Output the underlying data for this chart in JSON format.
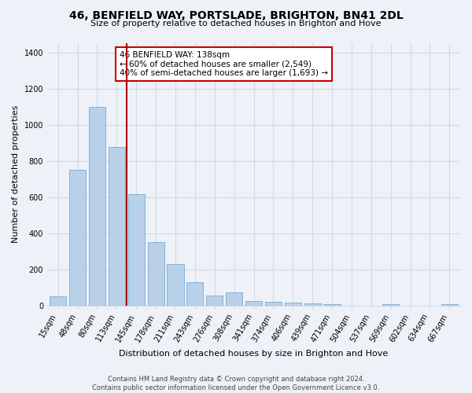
{
  "title": "46, BENFIELD WAY, PORTSLADE, BRIGHTON, BN41 2DL",
  "subtitle": "Size of property relative to detached houses in Brighton and Hove",
  "xlabel": "Distribution of detached houses by size in Brighton and Hove",
  "ylabel": "Number of detached properties",
  "bar_labels": [
    "15sqm",
    "48sqm",
    "80sqm",
    "113sqm",
    "145sqm",
    "178sqm",
    "211sqm",
    "243sqm",
    "276sqm",
    "308sqm",
    "341sqm",
    "374sqm",
    "406sqm",
    "439sqm",
    "471sqm",
    "504sqm",
    "537sqm",
    "569sqm",
    "602sqm",
    "634sqm",
    "667sqm"
  ],
  "bar_values": [
    50,
    750,
    1100,
    875,
    615,
    350,
    230,
    130,
    55,
    70,
    22,
    18,
    15,
    10,
    5,
    0,
    0,
    8,
    0,
    0,
    8
  ],
  "bar_color": "#b8d0e8",
  "bar_edge_color": "#7aaad0",
  "highlight_line_color": "#aa0000",
  "annotation_title": "46 BENFIELD WAY: 138sqm",
  "annotation_line1": "← 60% of detached houses are smaller (2,549)",
  "annotation_line2": "40% of semi-detached houses are larger (1,693) →",
  "annotation_box_color": "#cc0000",
  "ylim": [
    0,
    1450
  ],
  "yticks": [
    0,
    200,
    400,
    600,
    800,
    1000,
    1200,
    1400
  ],
  "footer_line1": "Contains HM Land Registry data © Crown copyright and database right 2024.",
  "footer_line2": "Contains public sector information licensed under the Open Government Licence v3.0.",
  "background_color": "#eef2f8",
  "grid_color": "#d0d8e8",
  "title_fontsize": 10,
  "subtitle_fontsize": 8,
  "ylabel_fontsize": 8,
  "xlabel_fontsize": 8,
  "tick_fontsize": 7,
  "footer_fontsize": 6
}
